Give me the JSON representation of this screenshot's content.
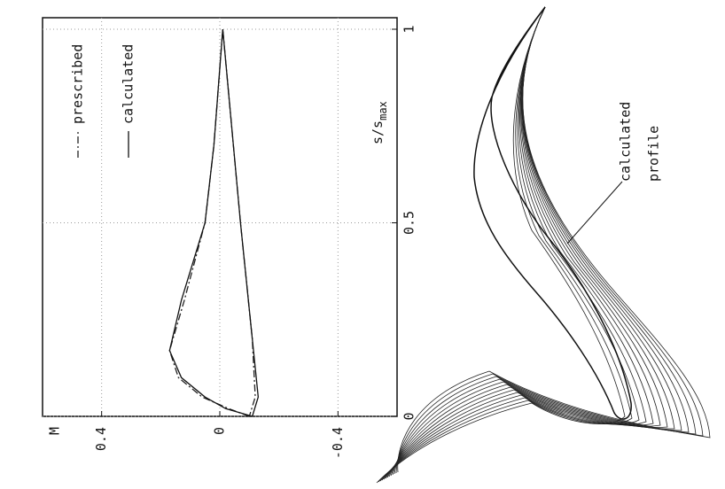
{
  "chart_data": {
    "type": "line",
    "x_label": "s/s",
    "x_label_sub": "max",
    "y_label": "M",
    "x": [
      0,
      0.02,
      0.05,
      0.1,
      0.17,
      0.3,
      0.5,
      0.7,
      1,
      0.75,
      0.5,
      0.2,
      0.05,
      0
    ],
    "xlim": [
      0,
      1
    ],
    "xticks": [
      0,
      0.5,
      1
    ],
    "ylim": [
      -0.6,
      0.6
    ],
    "yticks": [
      -0.4,
      0,
      0.4
    ],
    "grid": true,
    "series": [
      {
        "name": "prescribed",
        "color": "#222",
        "dash": "dashdot",
        "values": [
          -0.1,
          -0.03,
          0.06,
          0.14,
          0.17,
          0.12,
          0.05,
          0.02,
          -0.01,
          -0.04,
          -0.07,
          -0.11,
          -0.12,
          -0.1
        ]
      },
      {
        "name": "calculated",
        "color": "#111",
        "dash": "solid",
        "values": [
          -0.11,
          -0.02,
          0.05,
          0.13,
          0.17,
          0.13,
          0.05,
          0.02,
          -0.01,
          -0.04,
          -0.07,
          -0.11,
          -0.13,
          -0.11
        ]
      }
    ],
    "annotation": [
      "calculated",
      "profile"
    ]
  }
}
